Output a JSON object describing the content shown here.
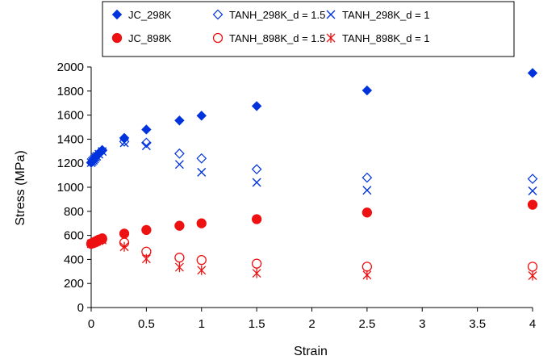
{
  "chart_data": {
    "type": "scatter",
    "title": "",
    "xlabel": "Strain",
    "ylabel": "Stress (MPa)",
    "xlim": [
      0,
      4
    ],
    "ylim": [
      0,
      2000
    ],
    "x_ticks": [
      "0",
      "0.5",
      "1",
      "1.5",
      "2",
      "2.5",
      "3",
      "3.5",
      "4"
    ],
    "y_ticks": [
      "0",
      "200",
      "400",
      "600",
      "800",
      "1000",
      "1200",
      "1400",
      "1600",
      "1800",
      "2000"
    ],
    "grid": false,
    "legend_position": "top",
    "colors": {
      "blue": "#0033dd",
      "red": "#ee1111"
    },
    "series": [
      {
        "name": "JC_298K",
        "marker": "diamond-filled",
        "color": "#0033dd",
        "x": [
          0,
          0.01,
          0.02,
          0.03,
          0.04,
          0.05,
          0.07,
          0.1,
          0.3,
          0.5,
          0.8,
          1,
          1.5,
          2.5,
          4
        ],
        "y": [
          1205,
          1215,
          1228,
          1240,
          1255,
          1265,
          1285,
          1310,
          1410,
          1480,
          1555,
          1595,
          1675,
          1805,
          1950
        ]
      },
      {
        "name": "TANH_298K_d = 1.5",
        "marker": "diamond-open",
        "color": "#0033dd",
        "x": [
          0,
          0.01,
          0.02,
          0.03,
          0.04,
          0.05,
          0.07,
          0.1,
          0.3,
          0.5,
          0.8,
          1,
          1.5,
          2.5,
          4
        ],
        "y": [
          1205,
          1215,
          1225,
          1238,
          1250,
          1262,
          1280,
          1305,
          1380,
          1370,
          1280,
          1240,
          1150,
          1080,
          1070
        ]
      },
      {
        "name": "TANH_298K_d = 1",
        "marker": "x",
        "color": "#0033dd",
        "x": [
          0,
          0.01,
          0.02,
          0.03,
          0.04,
          0.05,
          0.07,
          0.1,
          0.3,
          0.5,
          0.8,
          1,
          1.5,
          2.5,
          4
        ],
        "y": [
          1205,
          1215,
          1225,
          1235,
          1248,
          1258,
          1275,
          1298,
          1370,
          1345,
          1190,
          1125,
          1040,
          975,
          970
        ]
      },
      {
        "name": "JC_898K",
        "marker": "circle-filled",
        "color": "#ee1111",
        "x": [
          0,
          0.01,
          0.02,
          0.03,
          0.04,
          0.05,
          0.07,
          0.1,
          0.3,
          0.5,
          0.8,
          1,
          1.5,
          2.5,
          4
        ],
        "y": [
          530,
          535,
          540,
          545,
          550,
          555,
          565,
          575,
          615,
          645,
          680,
          700,
          735,
          790,
          855
        ]
      },
      {
        "name": "TANH_898K_d = 1.5",
        "marker": "circle-open",
        "color": "#ee1111",
        "x": [
          0,
          0.01,
          0.02,
          0.03,
          0.04,
          0.05,
          0.07,
          0.1,
          0.3,
          0.5,
          0.8,
          1,
          1.5,
          2.5,
          4
        ],
        "y": [
          530,
          534,
          538,
          543,
          548,
          552,
          560,
          568,
          540,
          465,
          415,
          395,
          365,
          340,
          340
        ]
      },
      {
        "name": "TANH_898K_d = 1",
        "marker": "asterisk",
        "color": "#ee1111",
        "x": [
          0,
          0.01,
          0.02,
          0.03,
          0.04,
          0.05,
          0.07,
          0.1,
          0.3,
          0.5,
          0.8,
          1,
          1.5,
          2.5,
          4
        ],
        "y": [
          530,
          534,
          538,
          542,
          546,
          550,
          556,
          562,
          505,
          405,
          335,
          310,
          285,
          270,
          265
        ]
      }
    ]
  }
}
